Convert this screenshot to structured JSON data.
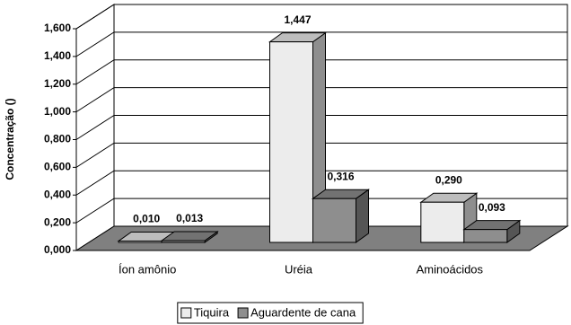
{
  "chart_data": {
    "type": "bar3d",
    "y_label": "Concentração ()",
    "categories": [
      "Íon amônio",
      "Uréia",
      "Aminoácidos"
    ],
    "series": [
      {
        "name": "Tiquira",
        "color": "#ececec",
        "values": [
          0.01,
          1.447,
          0.29
        ],
        "value_labels": [
          "0,010",
          "1,447",
          "0,290"
        ]
      },
      {
        "name": "Aguardente de cana",
        "color": "#8e8e8e",
        "values": [
          0.013,
          0.316,
          0.093
        ],
        "value_labels": [
          "0,013",
          "0,316",
          "0,093"
        ]
      }
    ],
    "ylim": [
      0,
      1.6
    ],
    "yticks": [
      {
        "value": 0,
        "label": "0,000"
      },
      {
        "value": 0.2,
        "label": "0,200"
      },
      {
        "value": 0.4,
        "label": "0,400"
      },
      {
        "value": 0.6,
        "label": "0,600"
      },
      {
        "value": 0.8,
        "label": "0,800"
      },
      {
        "value": 1.0,
        "label": "1,000"
      },
      {
        "value": 1.2,
        "label": "1,200"
      },
      {
        "value": 1.4,
        "label": "1,400"
      },
      {
        "value": 1.6,
        "label": "1,600"
      }
    ],
    "grid": true,
    "legend": "bottom"
  }
}
